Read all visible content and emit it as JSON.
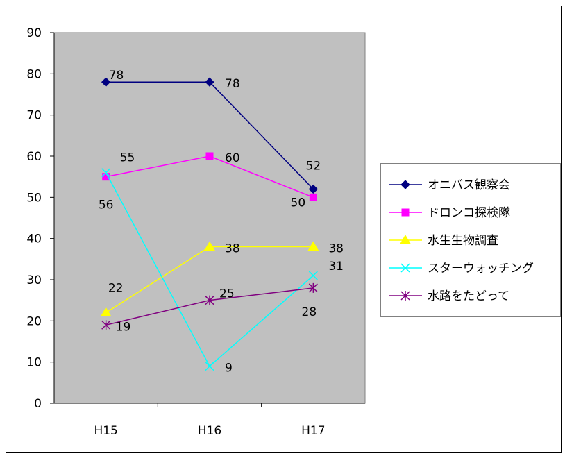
{
  "chart_data": {
    "type": "line",
    "categories": [
      "H15",
      "H16",
      "H17"
    ],
    "ylim": [
      0,
      90
    ],
    "yticks": [
      0,
      10,
      20,
      30,
      40,
      50,
      60,
      70,
      80,
      90
    ],
    "grid": false,
    "legend_placement": "right",
    "plot_background": "#c0c0c0",
    "series": [
      {
        "name": "オニバス観察会",
        "values": [
          78,
          78,
          52
        ],
        "labels": [
          "78",
          "78",
          "52"
        ],
        "color": "#000080",
        "marker": "diamond"
      },
      {
        "name": "ドロンコ探検隊",
        "values": [
          55,
          60,
          50
        ],
        "labels": [
          "55",
          "60",
          "50"
        ],
        "color": "#ff00ff",
        "marker": "square"
      },
      {
        "name": "水生生物調査",
        "values": [
          22,
          38,
          38
        ],
        "labels": [
          "22",
          "38",
          "38"
        ],
        "color": "#ffff00",
        "marker": "triangle"
      },
      {
        "name": "スターウォッチング",
        "values": [
          56,
          9,
          31
        ],
        "labels": [
          "56",
          "9",
          "31"
        ],
        "color": "#00ffff",
        "marker": "x"
      },
      {
        "name": "水路をたどって",
        "values": [
          19,
          25,
          28
        ],
        "labels": [
          "19",
          "25",
          "28"
        ],
        "color": "#800080",
        "marker": "star"
      }
    ]
  }
}
